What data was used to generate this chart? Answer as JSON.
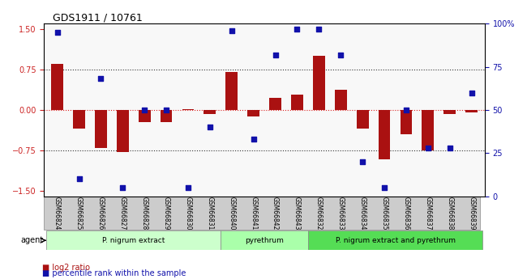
{
  "title": "GDS1911 / 10761",
  "samples": [
    "GSM66824",
    "GSM66825",
    "GSM66826",
    "GSM66827",
    "GSM66828",
    "GSM66829",
    "GSM66830",
    "GSM66831",
    "GSM66840",
    "GSM66841",
    "GSM66842",
    "GSM66843",
    "GSM66832",
    "GSM66833",
    "GSM66834",
    "GSM66835",
    "GSM66836",
    "GSM66837",
    "GSM66838",
    "GSM66839"
  ],
  "log2_ratio": [
    0.85,
    -0.35,
    -0.7,
    -0.78,
    -0.22,
    -0.22,
    0.02,
    -0.08,
    0.71,
    -0.12,
    0.22,
    0.28,
    1.0,
    0.38,
    -0.35,
    -0.92,
    -0.45,
    -0.75,
    -0.08,
    -0.05
  ],
  "percentile": [
    95,
    10,
    68,
    5,
    50,
    50,
    5,
    40,
    96,
    33,
    82,
    97,
    97,
    82,
    20,
    5,
    50,
    28,
    28,
    60
  ],
  "groups": [
    {
      "label": "P. nigrum extract",
      "start": 0,
      "end": 8,
      "color": "#ccffcc"
    },
    {
      "label": "pyrethrum",
      "start": 8,
      "end": 12,
      "color": "#aaffaa"
    },
    {
      "label": "P. nigrum extract and pyrethrum",
      "start": 12,
      "end": 20,
      "color": "#55dd55"
    }
  ],
  "ylim": [
    -1.6,
    1.6
  ],
  "yticks_left": [
    -1.5,
    -0.75,
    0.0,
    0.75,
    1.5
  ],
  "yticks_right": [
    0,
    25,
    50,
    75,
    100
  ],
  "hlines": [
    0.75,
    0.0,
    -0.75
  ],
  "bar_color": "#aa1111",
  "scatter_color": "#1111aa",
  "background_color": "#ffffff",
  "legend_bar_label": "log2 ratio",
  "legend_scatter_label": "percentile rank within the sample",
  "agent_label": "agent"
}
